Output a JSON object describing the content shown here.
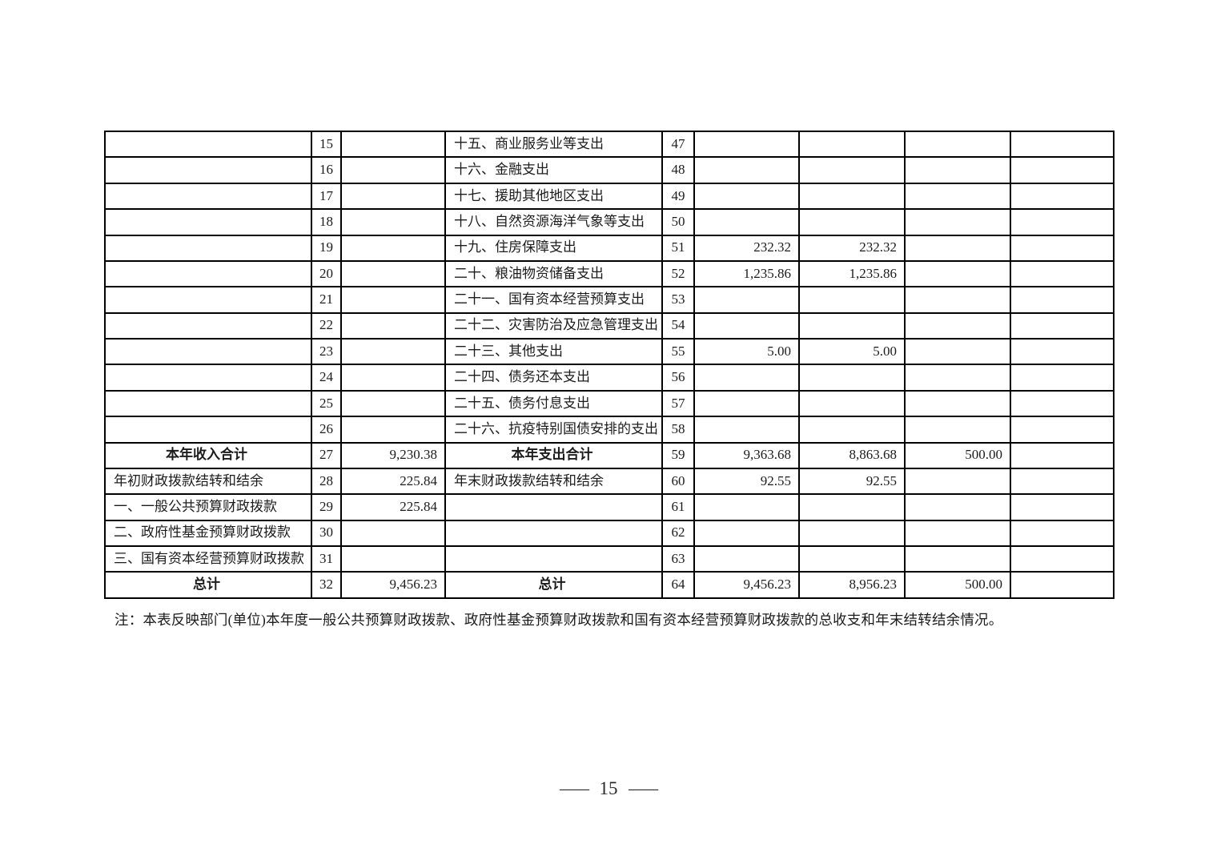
{
  "note": {
    "text": "注：本表反映部门(单位)本年度一般公共预算财政拨款、政府性基金预算财政拨款和国有资本经营预算财政拨款的总收支和年末结转结余情况。"
  },
  "footer": {
    "left_dash": "—",
    "number": "15",
    "right_dash": "—"
  },
  "table": {
    "rows": [
      {
        "income_item": "",
        "income_no": "15",
        "income_amount": "",
        "expense_item": "十五、商业服务业等支出",
        "expense_no": "47",
        "amounts": [
          "",
          "",
          "",
          ""
        ],
        "total_row": false
      },
      {
        "income_item": "",
        "income_no": "16",
        "income_amount": "",
        "expense_item": "十六、金融支出",
        "expense_no": "48",
        "amounts": [
          "",
          "",
          "",
          ""
        ],
        "total_row": false
      },
      {
        "income_item": "",
        "income_no": "17",
        "income_amount": "",
        "expense_item": "十七、援助其他地区支出",
        "expense_no": "49",
        "amounts": [
          "",
          "",
          "",
          ""
        ],
        "total_row": false
      },
      {
        "income_item": "",
        "income_no": "18",
        "income_amount": "",
        "expense_item": "十八、自然资源海洋气象等支出",
        "expense_no": "50",
        "amounts": [
          "",
          "",
          "",
          ""
        ],
        "total_row": false
      },
      {
        "income_item": "",
        "income_no": "19",
        "income_amount": "",
        "expense_item": "十九、住房保障支出",
        "expense_no": "51",
        "amounts": [
          "232.32",
          "232.32",
          "",
          ""
        ],
        "total_row": false
      },
      {
        "income_item": "",
        "income_no": "20",
        "income_amount": "",
        "expense_item": "二十、粮油物资储备支出",
        "expense_no": "52",
        "amounts": [
          "1,235.86",
          "1,235.86",
          "",
          ""
        ],
        "total_row": false
      },
      {
        "income_item": "",
        "income_no": "21",
        "income_amount": "",
        "expense_item": "二十一、国有资本经营预算支出",
        "expense_no": "53",
        "amounts": [
          "",
          "",
          "",
          ""
        ],
        "total_row": false
      },
      {
        "income_item": "",
        "income_no": "22",
        "income_amount": "",
        "expense_item": "二十二、灾害防治及应急管理支出",
        "expense_no": "54",
        "amounts": [
          "",
          "",
          "",
          ""
        ],
        "total_row": false
      },
      {
        "income_item": "",
        "income_no": "23",
        "income_amount": "",
        "expense_item": "二十三、其他支出",
        "expense_no": "55",
        "amounts": [
          "5.00",
          "5.00",
          "",
          ""
        ],
        "total_row": false
      },
      {
        "income_item": "",
        "income_no": "24",
        "income_amount": "",
        "expense_item": "二十四、债务还本支出",
        "expense_no": "56",
        "amounts": [
          "",
          "",
          "",
          ""
        ],
        "total_row": false
      },
      {
        "income_item": "",
        "income_no": "25",
        "income_amount": "",
        "expense_item": "二十五、债务付息支出",
        "expense_no": "57",
        "amounts": [
          "",
          "",
          "",
          ""
        ],
        "total_row": false
      },
      {
        "income_item": "",
        "income_no": "26",
        "income_amount": "",
        "expense_item": "二十六、抗疫特别国债安排的支出",
        "expense_no": "58",
        "amounts": [
          "",
          "",
          "",
          ""
        ],
        "total_row": false
      },
      {
        "income_item": "本年收入合计",
        "income_no": "27",
        "income_amount": "9,230.38",
        "expense_item": "本年支出合计",
        "expense_no": "59",
        "amounts": [
          "9,363.68",
          "8,863.68",
          "500.00",
          ""
        ],
        "total_row": true
      },
      {
        "income_item": "年初财政拨款结转和结余",
        "income_no": "28",
        "income_amount": "225.84",
        "expense_item": "年末财政拨款结转和结余",
        "expense_no": "60",
        "amounts": [
          "92.55",
          "92.55",
          "",
          ""
        ],
        "total_row": false
      },
      {
        "income_item": "一、一般公共预算财政拨款",
        "income_no": "29",
        "income_amount": "225.84",
        "expense_item": "",
        "expense_no": "61",
        "amounts": [
          "",
          "",
          "",
          ""
        ],
        "total_row": false
      },
      {
        "income_item": "二、政府性基金预算财政拨款",
        "income_no": "30",
        "income_amount": "",
        "expense_item": "",
        "expense_no": "62",
        "amounts": [
          "",
          "",
          "",
          ""
        ],
        "total_row": false
      },
      {
        "income_item": "三、国有资本经营预算财政拨款",
        "income_no": "31",
        "income_amount": "",
        "expense_item": "",
        "expense_no": "63",
        "amounts": [
          "",
          "",
          "",
          ""
        ],
        "total_row": false
      },
      {
        "income_item": "总计",
        "income_no": "32",
        "income_amount": "9,456.23",
        "expense_item": "总计",
        "expense_no": "64",
        "amounts": [
          "9,456.23",
          "8,956.23",
          "500.00",
          ""
        ],
        "total_row": true
      }
    ]
  }
}
